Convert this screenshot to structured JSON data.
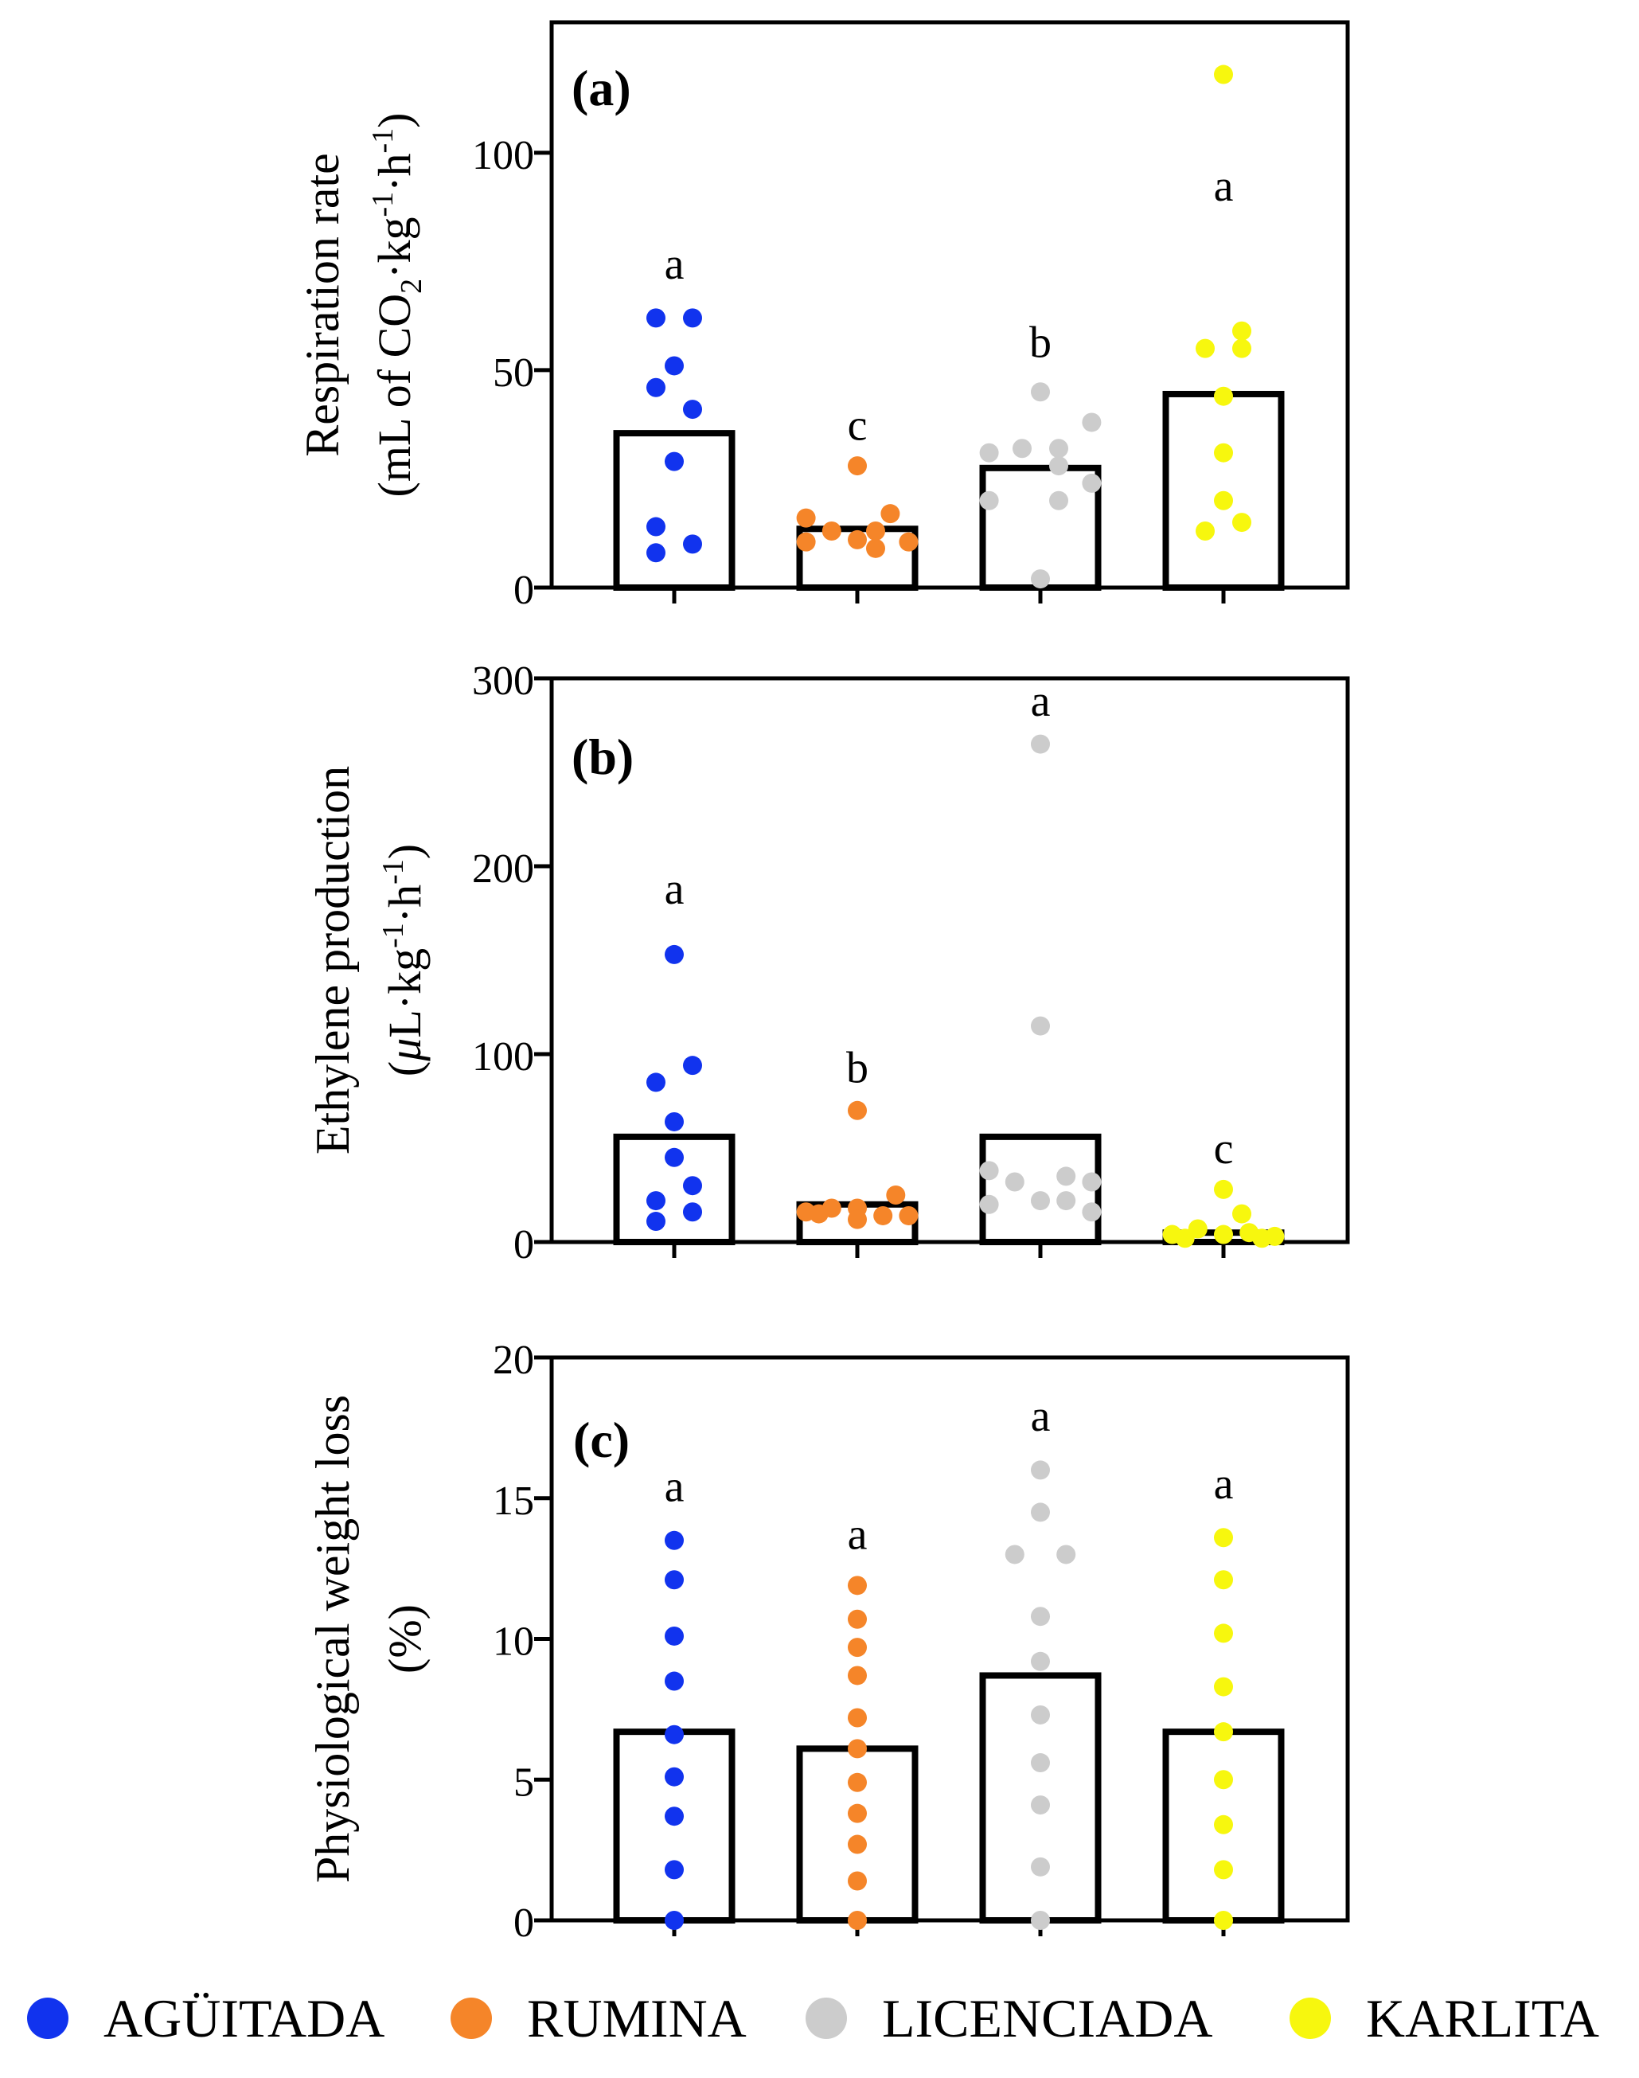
{
  "colors": {
    "AGÜITADA": "#1133ee",
    "RUMINA": "#f58529",
    "LICENCIADA": "#cccccc",
    "KARLITA": "#f7f70e"
  },
  "legend": [
    {
      "label": "AGÜITADA",
      "color_key": "AGÜITADA"
    },
    {
      "label": "RUMINA",
      "color_key": "RUMINA"
    },
    {
      "label": "LICENCIADA",
      "color_key": "LICENCIADA"
    },
    {
      "label": "KARLITA",
      "color_key": "KARLITA"
    }
  ],
  "chart_data": [
    {
      "type": "bar",
      "panel_label": "(a)",
      "ylabel_line1": "Respiration rate",
      "ylabel_line2_parts": [
        "(mL of CO",
        "2",
        "·kg",
        "-1",
        "·h",
        "-1",
        ")"
      ],
      "ylim": [
        0,
        130
      ],
      "yticks": [
        0,
        50,
        100
      ],
      "categories": [
        "AGÜITADA",
        "RUMINA",
        "LICENCIADA",
        "KARLITA"
      ],
      "values": [
        35.5,
        13.5,
        27.5,
        44.5
      ],
      "letters": [
        {
          "text": "a",
          "y": 71
        },
        {
          "text": "c",
          "y": 34
        },
        {
          "text": "b",
          "y": 53
        },
        {
          "text": "a",
          "y": 89
        }
      ],
      "points": [
        [
          [
            -0.1,
            62
          ],
          [
            0.1,
            62
          ],
          [
            0,
            51
          ],
          [
            -0.1,
            46
          ],
          [
            0.1,
            41
          ],
          [
            0,
            29
          ],
          [
            -0.1,
            14
          ],
          [
            0.1,
            10
          ],
          [
            -0.1,
            8
          ]
        ],
        [
          [
            0,
            28
          ],
          [
            -0.28,
            16
          ],
          [
            0.18,
            17
          ],
          [
            -0.14,
            13
          ],
          [
            0.1,
            13
          ],
          [
            -0.28,
            10.5
          ],
          [
            0,
            11
          ],
          [
            0.28,
            10.5
          ],
          [
            0.1,
            9
          ]
        ],
        [
          [
            0,
            45
          ],
          [
            -0.28,
            31
          ],
          [
            -0.1,
            32
          ],
          [
            0.1,
            32
          ],
          [
            0.28,
            38
          ],
          [
            -0.28,
            20
          ],
          [
            0.1,
            20
          ],
          [
            0.28,
            24
          ],
          [
            0.1,
            28
          ],
          [
            0,
            2
          ]
        ],
        [
          [
            0,
            118
          ],
          [
            -0.1,
            55
          ],
          [
            0.1,
            55
          ],
          [
            0.1,
            59
          ],
          [
            0,
            44
          ],
          [
            0,
            31
          ],
          [
            0,
            20
          ],
          [
            -0.1,
            13
          ],
          [
            0.1,
            15
          ]
        ]
      ]
    },
    {
      "type": "bar",
      "panel_label": "(b)",
      "ylabel_line1": "Ethylene production",
      "ylabel_line2_parts": [
        "(",
        "μ",
        "L·kg",
        "-1",
        "·h",
        "-1",
        ")"
      ],
      "ylim": [
        0,
        300
      ],
      "yticks": [
        0,
        100,
        200,
        300
      ],
      "categories": [
        "AGÜITADA",
        "RUMINA",
        "LICENCIADA",
        "KARLITA"
      ],
      "values": [
        56,
        20,
        56,
        5
      ],
      "letters": [
        {
          "text": "a",
          "y": 180
        },
        {
          "text": "b",
          "y": 85
        },
        {
          "text": "a",
          "y": 280
        },
        {
          "text": "c",
          "y": 42
        }
      ],
      "points": [
        [
          [
            0,
            153
          ],
          [
            -0.1,
            85
          ],
          [
            0.1,
            94
          ],
          [
            0,
            64
          ],
          [
            0,
            45
          ],
          [
            -0.1,
            22
          ],
          [
            0.1,
            30
          ],
          [
            0.1,
            16
          ],
          [
            -0.1,
            11
          ]
        ],
        [
          [
            0,
            70
          ],
          [
            -0.28,
            16
          ],
          [
            -0.14,
            18
          ],
          [
            0,
            18
          ],
          [
            0.14,
            14
          ],
          [
            0.28,
            14
          ],
          [
            0.21,
            25
          ],
          [
            -0.21,
            15
          ],
          [
            0,
            12
          ]
        ],
        [
          [
            0,
            265
          ],
          [
            0,
            115
          ],
          [
            -0.28,
            38
          ],
          [
            -0.14,
            32
          ],
          [
            0.14,
            35
          ],
          [
            0.28,
            32
          ],
          [
            -0.28,
            20
          ],
          [
            0,
            22
          ],
          [
            0.14,
            22
          ],
          [
            0.28,
            16
          ]
        ],
        [
          [
            0,
            28
          ],
          [
            0.1,
            15
          ],
          [
            -0.28,
            4
          ],
          [
            -0.14,
            7
          ],
          [
            0,
            4
          ],
          [
            0.14,
            5
          ],
          [
            0.28,
            3
          ],
          [
            0.21,
            2
          ],
          [
            -0.21,
            2
          ]
        ]
      ]
    },
    {
      "type": "bar",
      "panel_label": "(c)",
      "ylabel_line1": "Physiological weight loss",
      "ylabel_line2_parts": [
        "(%)"
      ],
      "ylim": [
        0,
        20
      ],
      "yticks": [
        0,
        5,
        10,
        15,
        20
      ],
      "categories": [
        "AGÜITADA",
        "RUMINA",
        "LICENCIADA",
        "KARLITA"
      ],
      "values": [
        6.7,
        6.1,
        8.7,
        6.7
      ],
      "letters": [
        {
          "text": "a",
          "y": 14.9
        },
        {
          "text": "a",
          "y": 13.2
        },
        {
          "text": "a",
          "y": 17.4
        },
        {
          "text": "a",
          "y": 15.0
        }
      ],
      "points": [
        [
          [
            0,
            13.5
          ],
          [
            0,
            12.1
          ],
          [
            0,
            10.1
          ],
          [
            0,
            8.5
          ],
          [
            0,
            6.6
          ],
          [
            0,
            5.1
          ],
          [
            0,
            3.7
          ],
          [
            0,
            1.8
          ],
          [
            0,
            0
          ]
        ],
        [
          [
            0,
            11.9
          ],
          [
            0,
            10.7
          ],
          [
            0,
            9.7
          ],
          [
            0,
            8.7
          ],
          [
            0,
            7.2
          ],
          [
            0,
            6.1
          ],
          [
            0,
            4.9
          ],
          [
            0,
            3.8
          ],
          [
            0,
            2.7
          ],
          [
            0,
            1.4
          ],
          [
            0,
            0
          ]
        ],
        [
          [
            0,
            16.0
          ],
          [
            0,
            14.5
          ],
          [
            -0.14,
            13.0
          ],
          [
            0.14,
            13.0
          ],
          [
            0,
            10.8
          ],
          [
            0,
            9.2
          ],
          [
            0,
            7.3
          ],
          [
            0,
            5.6
          ],
          [
            0,
            4.1
          ],
          [
            0,
            1.9
          ],
          [
            0,
            0
          ]
        ],
        [
          [
            0,
            13.6
          ],
          [
            0,
            12.1
          ],
          [
            0,
            10.2
          ],
          [
            0,
            8.3
          ],
          [
            0,
            6.7
          ],
          [
            0,
            5.0
          ],
          [
            0,
            3.4
          ],
          [
            0,
            1.8
          ],
          [
            0,
            0
          ]
        ]
      ]
    }
  ]
}
